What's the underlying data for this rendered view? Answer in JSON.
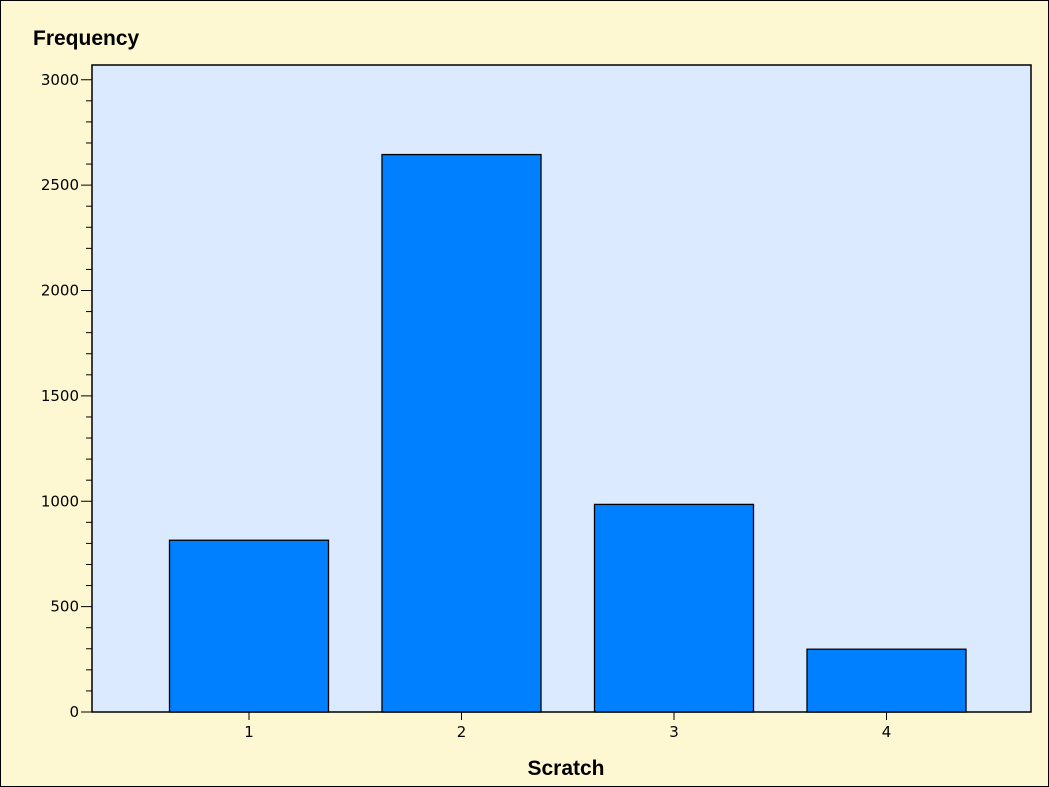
{
  "chart_data": {
    "type": "bar",
    "title": "",
    "xlabel": "Scratch",
    "ylabel": "Frequency",
    "categories": [
      "1",
      "2",
      "3",
      "4"
    ],
    "values": [
      815,
      2645,
      985,
      298
    ],
    "ylim": [
      0,
      3070
    ],
    "yticks": [
      0,
      500,
      1000,
      1500,
      2000,
      2500,
      3000
    ],
    "y_minor_step": 100,
    "grid": false,
    "legend": "none",
    "colors": {
      "bar": "#0080ff",
      "plot_background": "#dceaff",
      "frame_background": "#fef8d2",
      "border": "#000000"
    }
  }
}
